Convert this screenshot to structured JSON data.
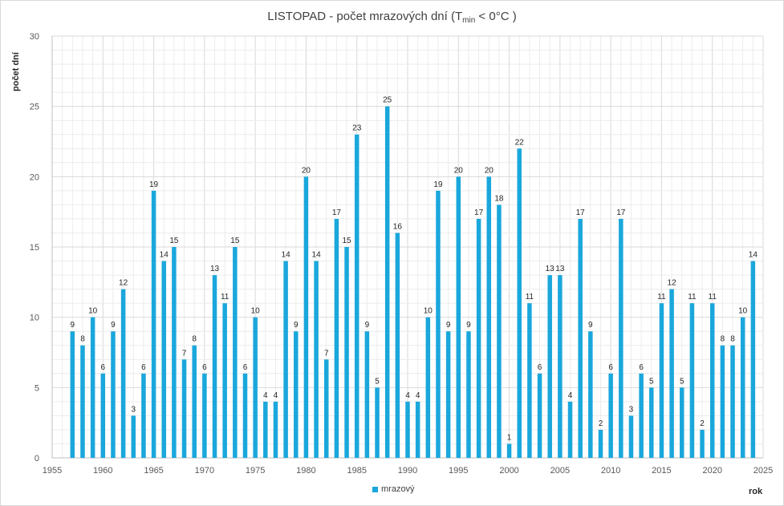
{
  "chart_data": {
    "type": "bar",
    "title_main": "LISTOPAD - počet mrazových dní (T",
    "title_sub": "min",
    "title_end": " < 0°C )",
    "xlabel": "rok",
    "ylabel": "počet dní",
    "xlim": [
      1955,
      2025
    ],
    "ylim": [
      0,
      30
    ],
    "x_ticks": [
      1955,
      1960,
      1965,
      1970,
      1975,
      1980,
      1985,
      1990,
      1995,
      2000,
      2005,
      2010,
      2015,
      2020,
      2025
    ],
    "y_ticks": [
      0,
      5,
      10,
      15,
      20,
      25,
      30
    ],
    "grid": true,
    "legend_position": "bottom",
    "bar_color": "#1aa7dc",
    "series": [
      {
        "name": "mrazový",
        "x": [
          1957,
          1958,
          1959,
          1960,
          1961,
          1962,
          1963,
          1964,
          1965,
          1966,
          1967,
          1968,
          1969,
          1970,
          1971,
          1972,
          1973,
          1974,
          1975,
          1976,
          1977,
          1978,
          1979,
          1980,
          1981,
          1982,
          1983,
          1984,
          1985,
          1986,
          1987,
          1988,
          1989,
          1990,
          1991,
          1992,
          1993,
          1994,
          1995,
          1996,
          1997,
          1998,
          1999,
          2000,
          2001,
          2002,
          2003,
          2004,
          2005,
          2006,
          2007,
          2008,
          2009,
          2010,
          2011,
          2012,
          2013,
          2014,
          2015,
          2016,
          2017,
          2018,
          2019,
          2020,
          2021,
          2022,
          2023,
          2024
        ],
        "values": [
          9,
          8,
          10,
          6,
          9,
          12,
          3,
          6,
          19,
          14,
          15,
          7,
          8,
          6,
          13,
          11,
          15,
          6,
          10,
          4,
          4,
          14,
          9,
          20,
          14,
          7,
          17,
          15,
          23,
          9,
          5,
          25,
          16,
          4,
          4,
          10,
          19,
          9,
          20,
          9,
          17,
          20,
          18,
          1,
          22,
          11,
          6,
          13,
          13,
          4,
          17,
          9,
          2,
          6,
          17,
          3,
          6,
          5,
          11,
          12,
          5,
          11,
          2,
          11,
          8,
          8,
          10,
          14
        ]
      }
    ]
  }
}
